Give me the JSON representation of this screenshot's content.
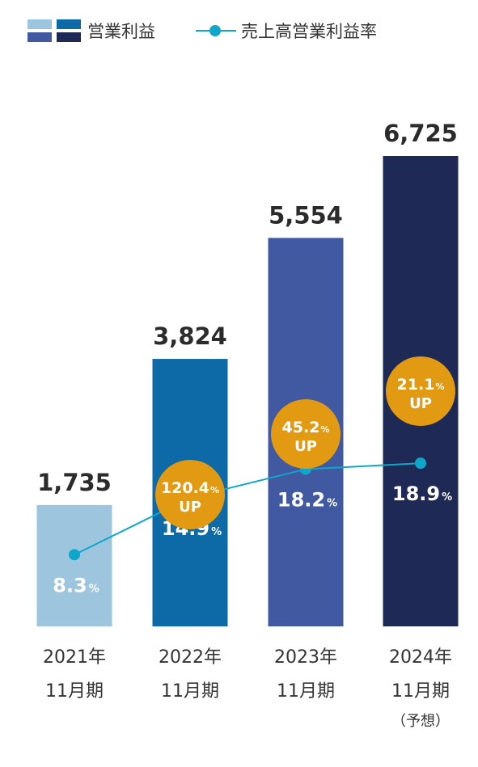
{
  "chart_data": {
    "type": "bar",
    "legend": {
      "position": "top-left",
      "bar_series_label": "営業利益",
      "line_series_label": "売上高営業利益率"
    },
    "categories": [
      {
        "line1": "2021年",
        "line2": "11月期",
        "note": ""
      },
      {
        "line1": "2022年",
        "line2": "11月期",
        "note": ""
      },
      {
        "line1": "2023年",
        "line2": "11月期",
        "note": ""
      },
      {
        "line1": "2024年",
        "line2": "11月期",
        "note": "（予想）"
      }
    ],
    "series": [
      {
        "name": "営業利益",
        "type": "bar",
        "values": [
          1735,
          3824,
          5554,
          6725
        ],
        "labels": [
          "1,735",
          "3,824",
          "5,554",
          "6,725"
        ],
        "colors": [
          "#9ec5de",
          "#0e6aa6",
          "#4159a0",
          "#1e2a55"
        ]
      },
      {
        "name": "売上高営業利益率",
        "type": "line",
        "values": [
          8.3,
          14.9,
          18.2,
          18.9
        ],
        "labels": [
          "8.3",
          "14.9",
          "18.2",
          "18.9"
        ],
        "unit": "%",
        "color": "#0ea7c9"
      }
    ],
    "growth_badges": [
      null,
      {
        "value": "120.4",
        "unit": "%",
        "label": "UP"
      },
      {
        "value": "45.2",
        "unit": "%",
        "label": "UP"
      },
      {
        "value": "21.1",
        "unit": "%",
        "label": "UP"
      }
    ],
    "badge_color": "#e39a13",
    "legend_swatch_colors": [
      "#9ec5de",
      "#0e6aa6",
      "#4159a0",
      "#1e2a55"
    ],
    "grid": false
  }
}
